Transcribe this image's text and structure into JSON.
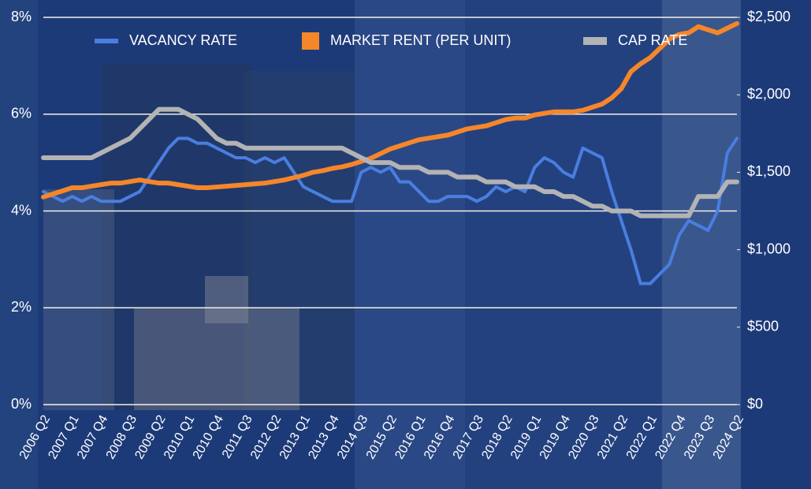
{
  "chart_data": {
    "type": "line",
    "categories": [
      "2006 Q2",
      null,
      null,
      "2007 Q1",
      null,
      null,
      "2007 Q4",
      null,
      null,
      "2008 Q3",
      null,
      null,
      "2009 Q2",
      null,
      null,
      "2010 Q1",
      null,
      null,
      "2010 Q4",
      null,
      null,
      "2011 Q3",
      null,
      null,
      "2012 Q2",
      null,
      null,
      "2013 Q1",
      null,
      null,
      "2013 Q4",
      null,
      null,
      "2014 Q3",
      null,
      null,
      "2015 Q2",
      null,
      null,
      "2016 Q1",
      null,
      null,
      "2016 Q4",
      null,
      null,
      "2017 Q3",
      null,
      null,
      "2018 Q2",
      null,
      null,
      "2019 Q1",
      null,
      null,
      "2019 Q4",
      null,
      null,
      "2020 Q3",
      null,
      null,
      "2021 Q2",
      null,
      null,
      "2022 Q1",
      null,
      null,
      "2022 Q4",
      null,
      null,
      "2023 Q3",
      null,
      null,
      "2024 Q2"
    ],
    "series": [
      {
        "name": "VACANCY RATE",
        "color": "#4a7ee0",
        "marker": "line",
        "values": [
          4.4,
          4.3,
          4.2,
          4.3,
          4.2,
          4.3,
          4.2,
          4.2,
          4.2,
          4.3,
          4.4,
          4.7,
          5.0,
          5.3,
          5.5,
          5.5,
          5.4,
          5.4,
          5.3,
          5.2,
          5.1,
          5.1,
          5.0,
          5.1,
          5.0,
          5.1,
          4.8,
          4.5,
          4.4,
          4.3,
          4.2,
          4.2,
          4.2,
          4.8,
          4.9,
          4.8,
          4.9,
          4.6,
          4.6,
          4.4,
          4.2,
          4.2,
          4.3,
          4.3,
          4.3,
          4.2,
          4.3,
          4.5,
          4.4,
          4.5,
          4.4,
          4.9,
          5.1,
          5.0,
          4.8,
          4.7,
          5.3,
          5.2,
          5.1,
          4.4,
          3.8,
          3.2,
          2.5,
          2.5,
          2.7,
          2.9,
          3.5,
          3.8,
          3.7,
          3.6,
          4.0,
          5.2,
          5.5
        ]
      },
      {
        "name": "MARKET RENT (PER UNIT)",
        "color": "#f5862a",
        "marker": "square",
        "axis": "y2",
        "values": [
          1340,
          1360,
          1380,
          1400,
          1400,
          1410,
          1420,
          1430,
          1430,
          1440,
          1450,
          1440,
          1430,
          1430,
          1420,
          1410,
          1400,
          1400,
          1405,
          1410,
          1415,
          1420,
          1425,
          1430,
          1440,
          1450,
          1465,
          1480,
          1500,
          1510,
          1525,
          1535,
          1550,
          1570,
          1590,
          1620,
          1650,
          1670,
          1690,
          1710,
          1720,
          1730,
          1740,
          1760,
          1780,
          1790,
          1800,
          1820,
          1840,
          1850,
          1850,
          1870,
          1880,
          1890,
          1890,
          1890,
          1900,
          1920,
          1940,
          1980,
          2040,
          2150,
          2200,
          2240,
          2300,
          2360,
          2390,
          2400,
          2440,
          2420,
          2400,
          2430,
          2460
        ]
      },
      {
        "name": "CAP RATE",
        "color": "#b3b3b3",
        "marker": "bar",
        "values": [
          5.1,
          5.1,
          5.1,
          5.1,
          5.1,
          5.1,
          5.2,
          5.3,
          5.4,
          5.5,
          5.7,
          5.9,
          6.1,
          6.1,
          6.1,
          6.0,
          5.9,
          5.7,
          5.5,
          5.4,
          5.4,
          5.3,
          5.3,
          5.3,
          5.3,
          5.3,
          5.3,
          5.3,
          5.3,
          5.3,
          5.3,
          5.3,
          5.2,
          5.1,
          5.0,
          5.0,
          5.0,
          4.9,
          4.9,
          4.9,
          4.8,
          4.8,
          4.8,
          4.7,
          4.7,
          4.7,
          4.6,
          4.6,
          4.6,
          4.5,
          4.5,
          4.5,
          4.4,
          4.4,
          4.3,
          4.3,
          4.2,
          4.1,
          4.1,
          4.0,
          4.0,
          4.0,
          3.9,
          3.9,
          3.9,
          3.9,
          3.9,
          3.9,
          4.3,
          4.3,
          4.3,
          4.6,
          4.6
        ]
      }
    ],
    "ylim": [
      0,
      8
    ],
    "yticks": [
      {
        "value": 0,
        "label": "0%"
      },
      {
        "value": 2,
        "label": "2%"
      },
      {
        "value": 4,
        "label": "4%"
      },
      {
        "value": 6,
        "label": "6%"
      },
      {
        "value": 8,
        "label": "8%"
      }
    ],
    "y2lim": [
      0,
      2500
    ],
    "y2ticks": [
      {
        "value": 0,
        "label": "$0"
      },
      {
        "value": 500,
        "label": "$500"
      },
      {
        "value": 1000,
        "label": "$1,000"
      },
      {
        "value": 1500,
        "label": "$1,500"
      },
      {
        "value": 2000,
        "label": "$2,000"
      },
      {
        "value": 2500,
        "label": "$2,500"
      }
    ],
    "grid": true,
    "legend": "top"
  }
}
